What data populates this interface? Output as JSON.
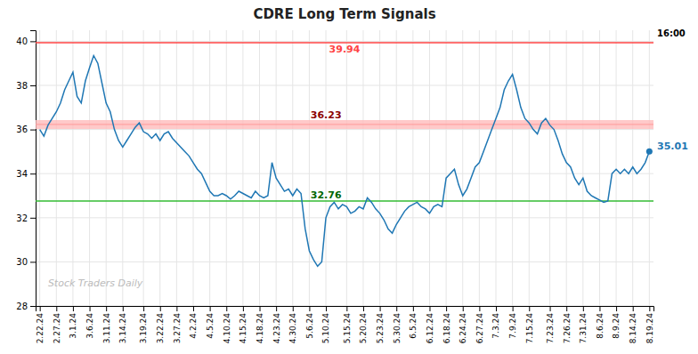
{
  "chart_data": {
    "type": "line",
    "title": "CDRE Long Term Signals",
    "categories": [
      "2.22.24",
      null,
      null,
      null,
      "2.27.24",
      null,
      null,
      null,
      "3.1.24",
      null,
      null,
      null,
      "3.6.24",
      null,
      null,
      null,
      "3.11.24",
      null,
      null,
      null,
      "3.14.24",
      null,
      null,
      null,
      null,
      "3.19.24",
      null,
      null,
      null,
      "3.22.24",
      null,
      null,
      null,
      "3.27.24",
      null,
      null,
      null,
      "4.2.24",
      null,
      null,
      null,
      "4.5.24",
      null,
      null,
      null,
      "4.10.24",
      null,
      null,
      null,
      "4.15.24",
      null,
      null,
      null,
      "4.18.24",
      null,
      null,
      null,
      "4.23.24",
      null,
      null,
      null,
      "4.30.24",
      null,
      null,
      null,
      "5.6.24",
      null,
      null,
      null,
      "5.10.24",
      null,
      null,
      null,
      null,
      "5.15.24",
      null,
      null,
      null,
      "5.20.24",
      null,
      null,
      null,
      "5.23.24",
      null,
      null,
      null,
      "5.30.24",
      null,
      null,
      null,
      "6.5.24",
      null,
      null,
      null,
      "6.12.24",
      null,
      null,
      null,
      "6.18.24",
      null,
      null,
      null,
      "6.24.24",
      null,
      null,
      null,
      "6.27.24",
      null,
      null,
      null,
      "7.3.24",
      null,
      null,
      null,
      "7.9.24",
      null,
      null,
      null,
      "7.15.24",
      null,
      null,
      null,
      null,
      "7.23.24",
      null,
      null,
      null,
      "7.26.24",
      null,
      null,
      null,
      "7.31.24",
      null,
      null,
      null,
      "8.6.24",
      null,
      null,
      null,
      "8.9.24",
      null,
      null,
      null,
      "8.14.24",
      null,
      null,
      null,
      "8.19.24"
    ],
    "values": [
      36.0,
      35.7,
      36.2,
      36.5,
      36.8,
      37.2,
      37.8,
      38.2,
      38.6,
      37.5,
      37.2,
      38.2,
      38.8,
      39.35,
      39.0,
      38.1,
      37.2,
      36.8,
      36.0,
      35.5,
      35.2,
      35.5,
      35.8,
      36.1,
      36.3,
      35.9,
      35.8,
      35.6,
      35.8,
      35.5,
      35.8,
      35.9,
      35.6,
      35.4,
      35.2,
      35.0,
      34.8,
      34.5,
      34.2,
      34.0,
      33.6,
      33.2,
      33.0,
      33.0,
      33.1,
      33.0,
      32.85,
      33.0,
      33.2,
      33.1,
      33.0,
      32.9,
      33.2,
      33.0,
      32.9,
      33.0,
      34.5,
      33.8,
      33.5,
      33.2,
      33.3,
      33.0,
      33.3,
      33.1,
      31.5,
      30.5,
      30.1,
      29.8,
      30.0,
      32.0,
      32.5,
      32.7,
      32.4,
      32.6,
      32.5,
      32.2,
      32.3,
      32.5,
      32.4,
      32.9,
      32.7,
      32.4,
      32.2,
      31.9,
      31.5,
      31.3,
      31.7,
      32.0,
      32.3,
      32.5,
      32.6,
      32.7,
      32.5,
      32.4,
      32.2,
      32.5,
      32.6,
      32.5,
      33.8,
      34.0,
      34.2,
      33.5,
      33.0,
      33.3,
      33.8,
      34.3,
      34.5,
      35.0,
      35.5,
      36.0,
      36.5,
      37.0,
      37.8,
      38.2,
      38.5,
      37.8,
      37.0,
      36.5,
      36.3,
      36.0,
      35.8,
      36.3,
      36.5,
      36.2,
      36.0,
      35.5,
      34.9,
      34.5,
      34.3,
      33.8,
      33.5,
      33.8,
      33.2,
      33.0,
      32.9,
      32.8,
      32.7,
      32.76,
      34.0,
      34.2,
      34.0,
      34.2,
      34.0,
      34.3,
      34.0,
      34.2,
      34.5,
      35.01
    ],
    "ylim": [
      28,
      40.5
    ],
    "yticks": [
      28,
      30,
      32,
      34,
      36,
      38,
      40
    ],
    "grid": true,
    "annotations": [
      {
        "type": "hline",
        "value": 39.94,
        "label": "39.94",
        "color": "#ff4444"
      },
      {
        "type": "band",
        "value": 36.23,
        "label": "36.23",
        "color": "#ffbbbb",
        "label_color": "#8b0000"
      },
      {
        "type": "hline",
        "value": 32.76,
        "label": "32.76",
        "color": "#33bb33",
        "label_color": "#006600"
      },
      {
        "type": "corner_text",
        "text": "16:00"
      },
      {
        "type": "last_value",
        "text": "35.01"
      },
      {
        "type": "watermark",
        "text": "Stock Traders Daily",
        "color": "#bbbbbb"
      }
    ]
  }
}
